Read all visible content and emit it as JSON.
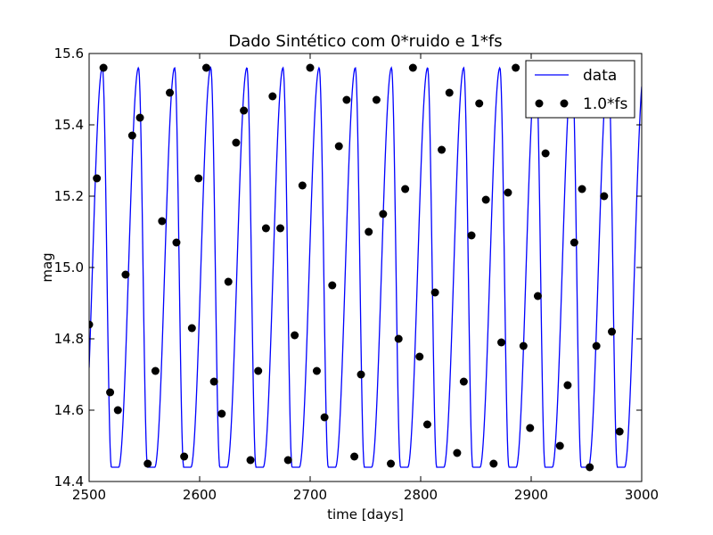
{
  "chart_data": {
    "type": "line",
    "title": "Dado Sintético com 0*ruido e 1*fs",
    "xlabel": "time [days]",
    "ylabel": "mag",
    "xlim": [
      2500,
      3000
    ],
    "ylim": [
      14.4,
      15.6
    ],
    "grid": false,
    "legend_position": "top-right",
    "x_ticks": [
      "2500",
      "2600",
      "2700",
      "2800",
      "2900",
      "3000"
    ],
    "y_ticks": [
      "14.4",
      "14.6",
      "14.8",
      "15.0",
      "15.2",
      "15.4",
      "15.6"
    ],
    "series": [
      {
        "name": "data",
        "style": "line",
        "color": "#0000ff",
        "period_days": 32.7,
        "phase_peak_day": 2512,
        "min": 14.44,
        "max": 15.56,
        "x_start": 2500,
        "x_end": 3000
      },
      {
        "name": "1.0*fs",
        "style": "markers",
        "color": "#000000",
        "points": [
          [
            2500,
            14.84
          ],
          [
            2507,
            15.25
          ],
          [
            2513,
            15.56
          ],
          [
            2519,
            14.65
          ],
          [
            2526,
            14.6
          ],
          [
            2533,
            14.98
          ],
          [
            2539,
            15.37
          ],
          [
            2546,
            15.42
          ],
          [
            2553,
            14.45
          ],
          [
            2560,
            14.71
          ],
          [
            2566,
            15.13
          ],
          [
            2573,
            15.49
          ],
          [
            2579,
            15.07
          ],
          [
            2586,
            14.47
          ],
          [
            2593,
            14.83
          ],
          [
            2599,
            15.25
          ],
          [
            2606,
            15.56
          ],
          [
            2613,
            14.68
          ],
          [
            2620,
            14.59
          ],
          [
            2626,
            14.96
          ],
          [
            2633,
            15.35
          ],
          [
            2640,
            15.44
          ],
          [
            2646,
            14.46
          ],
          [
            2653,
            14.71
          ],
          [
            2660,
            15.11
          ],
          [
            2666,
            15.48
          ],
          [
            2673,
            15.11
          ],
          [
            2680,
            14.46
          ],
          [
            2686,
            14.81
          ],
          [
            2693,
            15.23
          ],
          [
            2700,
            15.56
          ],
          [
            2706,
            14.71
          ],
          [
            2713,
            14.58
          ],
          [
            2720,
            14.95
          ],
          [
            2726,
            15.34
          ],
          [
            2733,
            15.47
          ],
          [
            2740,
            14.47
          ],
          [
            2746,
            14.7
          ],
          [
            2753,
            15.1
          ],
          [
            2760,
            15.47
          ],
          [
            2766,
            15.15
          ],
          [
            2773,
            14.45
          ],
          [
            2780,
            14.8
          ],
          [
            2786,
            15.22
          ],
          [
            2793,
            15.56
          ],
          [
            2799,
            14.75
          ],
          [
            2806,
            14.56
          ],
          [
            2813,
            14.93
          ],
          [
            2819,
            15.33
          ],
          [
            2826,
            15.49
          ],
          [
            2833,
            14.48
          ],
          [
            2839,
            14.68
          ],
          [
            2846,
            15.09
          ],
          [
            2853,
            15.46
          ],
          [
            2859,
            15.19
          ],
          [
            2866,
            14.45
          ],
          [
            2873,
            14.79
          ],
          [
            2879,
            15.21
          ],
          [
            2886,
            15.56
          ],
          [
            2893,
            14.78
          ],
          [
            2899,
            14.55
          ],
          [
            2906,
            14.92
          ],
          [
            2913,
            15.32
          ],
          [
            2919,
            15.5
          ],
          [
            2926,
            14.5
          ],
          [
            2933,
            14.67
          ],
          [
            2939,
            15.07
          ],
          [
            2946,
            15.22
          ],
          [
            2953,
            14.44
          ],
          [
            2959,
            14.78
          ],
          [
            2966,
            15.2
          ],
          [
            2973,
            14.82
          ],
          [
            2980,
            14.54
          ]
        ]
      }
    ]
  }
}
